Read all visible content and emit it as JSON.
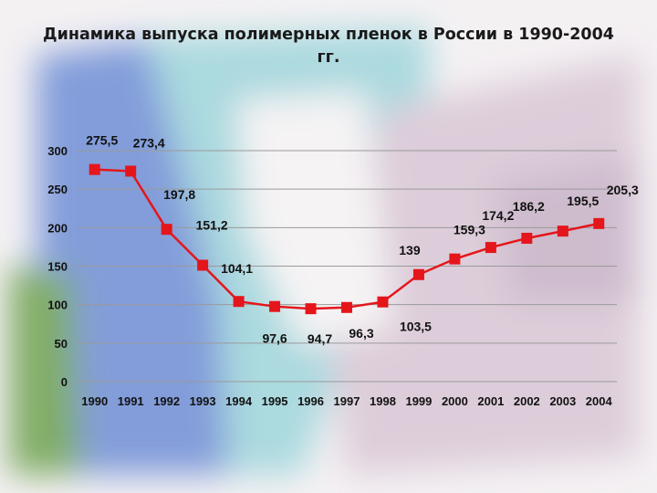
{
  "slide": {
    "title": "Динамика выпуска полимерных пленок в России в 1990-2004 гг."
  },
  "colors": {
    "series_line": "#e4161b",
    "marker": "#e4161b",
    "grid": "#9a9a9a",
    "text": "#111111"
  },
  "chart_data": {
    "type": "line",
    "title": "Динамика выпуска полимерных пленок в России в 1990-2004 гг.",
    "xlabel": "",
    "ylabel": "",
    "grid": true,
    "legend": "none",
    "ylim": [
      0,
      300
    ],
    "yticks": [
      "0",
      "50",
      "100",
      "150",
      "200",
      "250",
      "300"
    ],
    "categories": [
      "1990",
      "1991",
      "1992",
      "1993",
      "1994",
      "1995",
      "1996",
      "1997",
      "1998",
      "1999",
      "2000",
      "2001",
      "2002",
      "2003",
      "2004"
    ],
    "series": [
      {
        "values": [
          275.5,
          273.4,
          197.8,
          151.2,
          104.1,
          97.6,
          94.7,
          96.3,
          103.5,
          139,
          159.3,
          174.2,
          186.2,
          195.5,
          205.3
        ],
        "labels": [
          "275,5",
          "273,4",
          "197,8",
          "151,2",
          "104,1",
          "97,6",
          "94,7",
          "96,3",
          "103,5",
          "139",
          "159,3",
          "174,2",
          "186,2",
          "195,5",
          "205,3"
        ]
      }
    ]
  }
}
